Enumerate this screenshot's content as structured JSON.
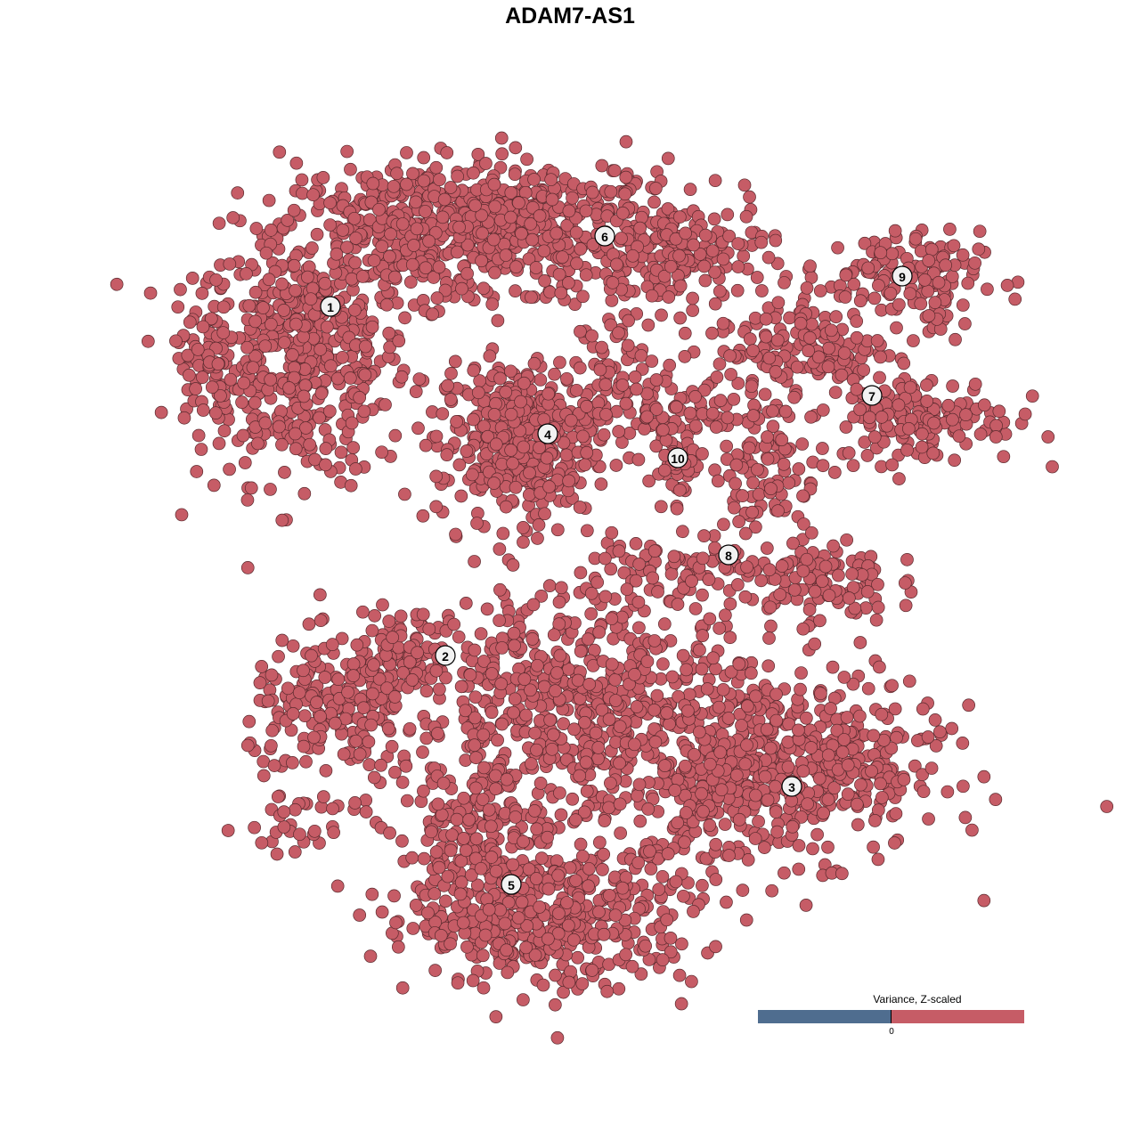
{
  "chart_data": {
    "type": "scatter",
    "title": "ADAM7-AS1",
    "xlabel": "",
    "ylabel": "",
    "xlim": [
      -47,
      47
    ],
    "ylim": [
      -47,
      47
    ],
    "grid": false,
    "point_color": "#C65C66",
    "point_edge_color": "#5a2a2e",
    "clusters": [
      {
        "label": "1",
        "label_pos": [
          -29.4,
          29.6
        ],
        "blobs": [
          {
            "center": [
              -32.5,
              24
            ],
            "sd": [
              6,
              7
            ],
            "n": 500
          },
          {
            "center": [
              -21.5,
              38
            ],
            "sd": [
              7,
              4
            ],
            "n": 300
          },
          {
            "center": [
              -43.5,
              24
            ],
            "sd": [
              1.5,
              4
            ],
            "n": 60
          }
        ]
      },
      {
        "label": "6",
        "label_pos": [
          1.4,
          37.5
        ],
        "blobs": [
          {
            "center": [
              -6.5,
              39
            ],
            "sd": [
              9,
              3.5
            ],
            "n": 400
          },
          {
            "center": [
              9.5,
              35
            ],
            "sd": [
              5,
              3
            ],
            "n": 150
          },
          {
            "center": [
              2.5,
              26
            ],
            "sd": [
              2,
              4
            ],
            "n": 50
          }
        ]
      },
      {
        "label": "9",
        "label_pos": [
          34.8,
          33
        ],
        "blobs": [
          {
            "center": [
              33.5,
              33
            ],
            "sd": [
              5,
              2.5
            ],
            "n": 120
          },
          {
            "center": [
              38.5,
              30
            ],
            "sd": [
              1.5,
              3
            ],
            "n": 30
          }
        ]
      },
      {
        "label": "7",
        "label_pos": [
          31.4,
          19.6
        ],
        "blobs": [
          {
            "center": [
              23.5,
              25
            ],
            "sd": [
              5,
              3
            ],
            "n": 150
          },
          {
            "center": [
              37.5,
              17
            ],
            "sd": [
              5,
              2.5
            ],
            "n": 150
          }
        ]
      },
      {
        "label": "4",
        "label_pos": [
          -5,
          15.3
        ],
        "blobs": [
          {
            "center": [
              -8.5,
              14.5
            ],
            "sd": [
              4.5,
              4.5
            ],
            "n": 400
          }
        ]
      },
      {
        "label": "10",
        "label_pos": [
          9.6,
          12.6
        ],
        "blobs": [
          {
            "center": [
              7.5,
              18
            ],
            "sd": [
              4.5,
              2.5
            ],
            "n": 100
          },
          {
            "center": [
              10,
              12
            ],
            "sd": [
              1.5,
              2.5
            ],
            "n": 40
          }
        ]
      },
      {
        "label": "8",
        "label_pos": [
          15.3,
          1.7
        ],
        "blobs": [
          {
            "center": [
              19.5,
              12
            ],
            "sd": [
              3,
              4
            ],
            "n": 100
          },
          {
            "center": [
              25.5,
              -1
            ],
            "sd": [
              4,
              2.5
            ],
            "n": 120
          },
          {
            "center": [
              9.5,
              0
            ],
            "sd": [
              5,
              2
            ],
            "n": 80
          }
        ]
      },
      {
        "label": "2",
        "label_pos": [
          -16.5,
          -9.6
        ],
        "blobs": [
          {
            "center": [
              -28.5,
              -16
            ],
            "sd": [
              5,
              4
            ],
            "n": 200
          },
          {
            "center": [
              -21.5,
              -9
            ],
            "sd": [
              4,
              2
            ],
            "n": 100
          },
          {
            "center": [
              -32.5,
              -29
            ],
            "sd": [
              3,
              1.5
            ],
            "n": 30
          }
        ]
      },
      {
        "label": "3",
        "label_pos": [
          22.4,
          -24.3
        ],
        "blobs": [
          {
            "center": [
              23.5,
              -22
            ],
            "sd": [
              8,
              5
            ],
            "n": 450
          },
          {
            "center": [
              13.5,
              -26
            ],
            "sd": [
              3,
              5
            ],
            "n": 100
          },
          {
            "center": [
              -0.5,
              -16
            ],
            "sd": [
              10,
              7
            ],
            "n": 700
          }
        ]
      },
      {
        "label": "5",
        "label_pos": [
          -9.1,
          -35.3
        ],
        "blobs": [
          {
            "center": [
              -4.5,
              -39
            ],
            "sd": [
              8,
              4
            ],
            "n": 450
          },
          {
            "center": [
              -13.5,
              -31
            ],
            "sd": [
              4,
              5
            ],
            "n": 150
          }
        ]
      }
    ],
    "legend": {
      "title": "Variance, Z-scaled",
      "tick_label": "0",
      "placement": "bottom-right",
      "low_color": "#4F6D8F",
      "high_color": "#C65C66"
    }
  }
}
